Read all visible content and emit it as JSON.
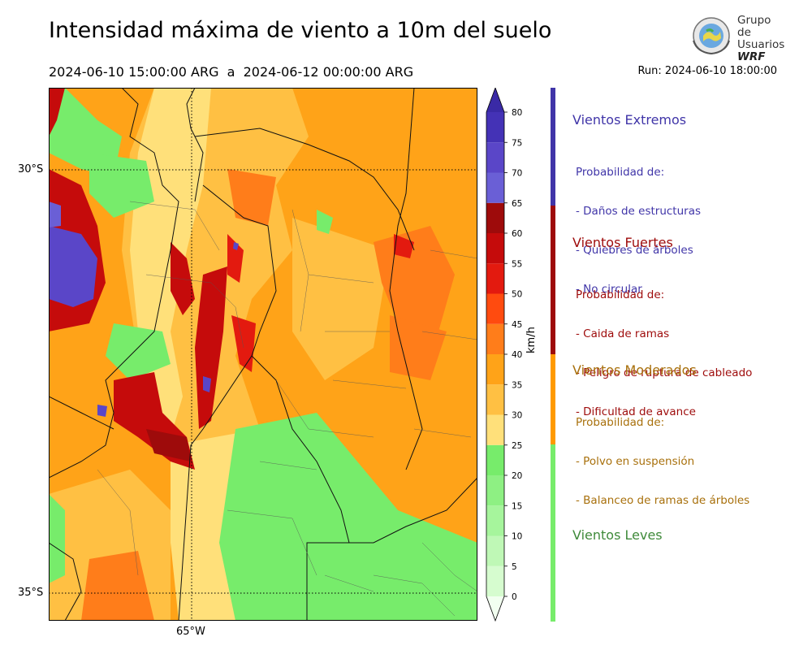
{
  "title": "Intensidad máxima de viento a 10m del suelo",
  "period": "2024-06-10 15:00:00 ARG  a  2024-06-12 00:00:00 ARG",
  "run": "Run: 2024-06-10 18:00:00",
  "logo": {
    "line1": "Grupo de",
    "line2": "Usuarios",
    "line3": "WRF"
  },
  "map": {
    "lat_labels": [
      "30°S",
      "35°S"
    ],
    "lon_labels": [
      "65°W"
    ]
  },
  "colorbar": {
    "unit": "km/h",
    "ticks": [
      "0",
      "5",
      "10",
      "15",
      "20",
      "25",
      "30",
      "35",
      "40",
      "45",
      "50",
      "55",
      "60",
      "65",
      "70",
      "75",
      "80"
    ],
    "colors": [
      "#f2fff0",
      "#d6fccf",
      "#bff8b6",
      "#a6f59c",
      "#8ef083",
      "#77ec6b",
      "#ffe07a",
      "#ffc043",
      "#ffa318",
      "#ff7d1a",
      "#ff4b0f",
      "#e31a0f",
      "#c50b0b",
      "#9e0b0b",
      "#6a5fd6",
      "#5a46c8",
      "#4432b6"
    ],
    "extend_color": "#3a2aa6"
  },
  "legend": [
    {
      "title": "Vientos Extremos",
      "color": "#4035a8",
      "lines": [
        "Probabilidad de:",
        "- Daños de estructuras",
        "- Quiebres de árboles",
        "- No circular"
      ]
    },
    {
      "title": "Vientos Fuertes",
      "color": "#9e0b0b",
      "lines": [
        "Probabilidad de:",
        "- Caida de ramas",
        "- Peligro de ruptura de cableado",
        "- Dificultad de avance"
      ]
    },
    {
      "title": "Vientos Moderados",
      "color": "#a8700c",
      "lines": [
        "Probabilidad de:",
        "- Polvo en suspensión",
        "- Balanceo de ramas de árboles"
      ]
    },
    {
      "title": "Vientos Leves",
      "color": "#3f8a3a",
      "lines": []
    }
  ]
}
